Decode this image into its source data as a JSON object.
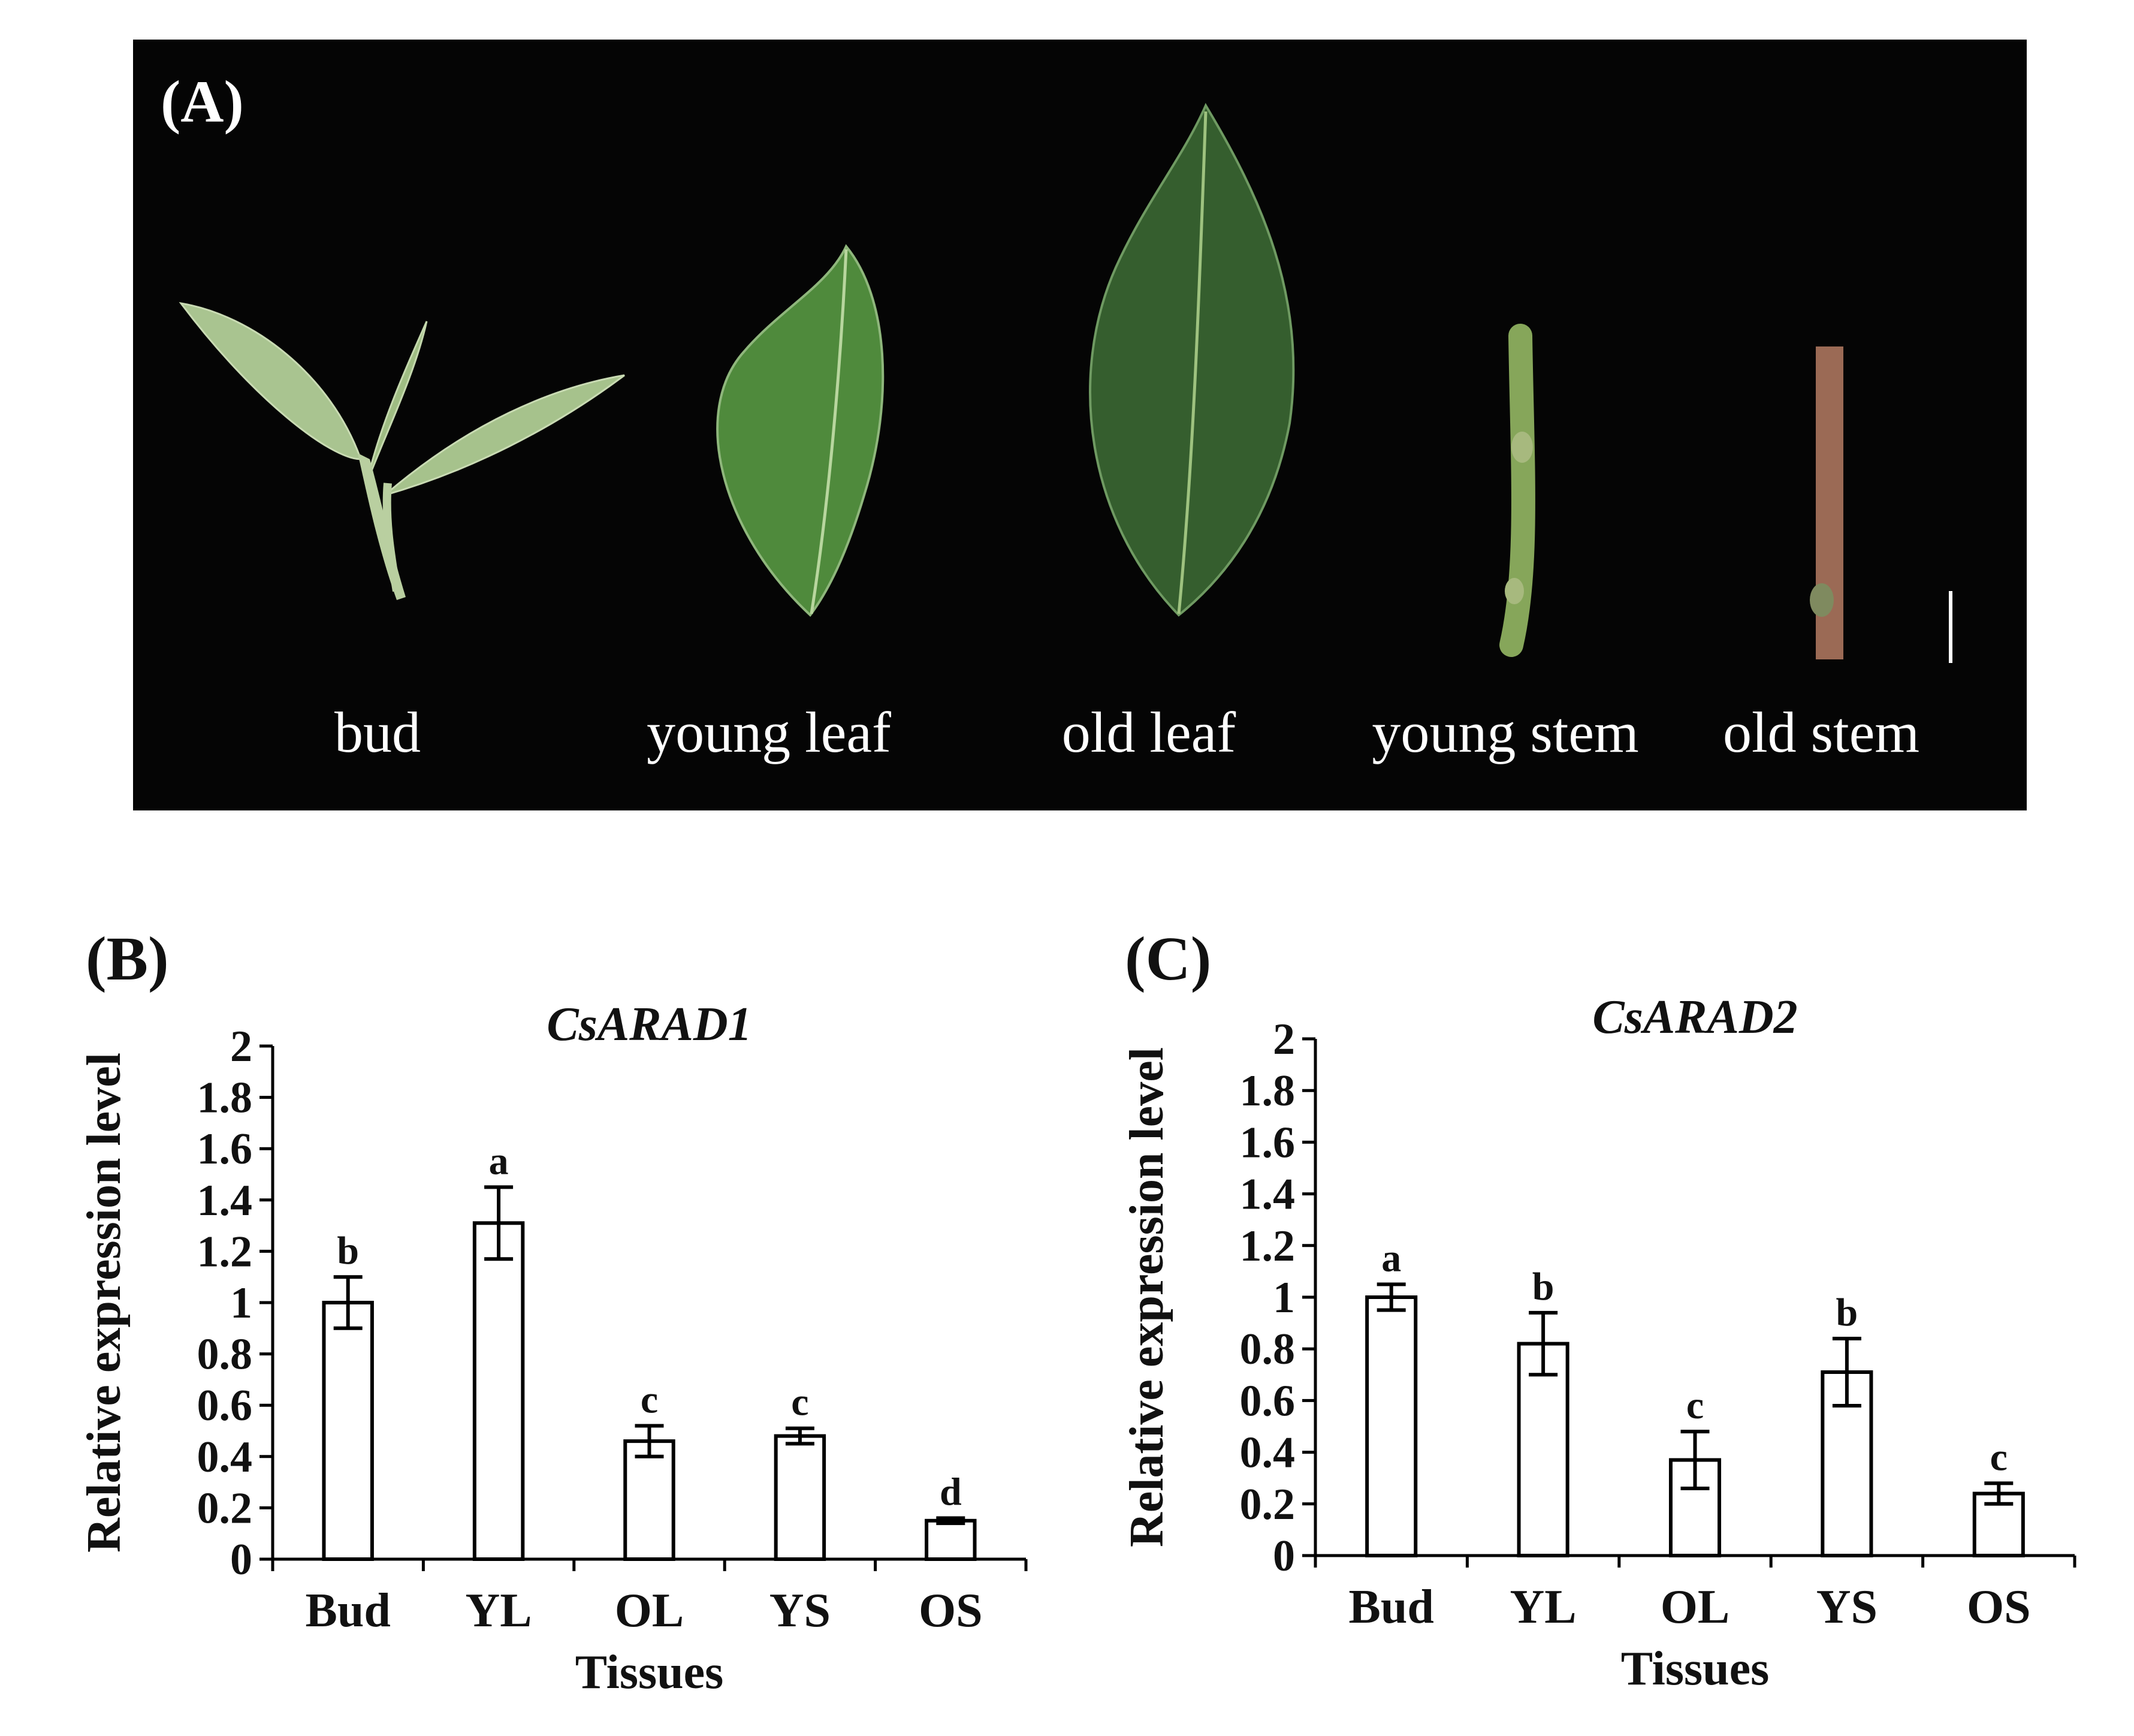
{
  "panel_a": {
    "letter": "(A)",
    "tissues": [
      "bud",
      "young leaf",
      "old leaf",
      "young stem",
      "old stem"
    ]
  },
  "panel_b": {
    "letter": "(B)"
  },
  "panel_c": {
    "letter": "(C)"
  },
  "colors": {
    "photo_background": "#050505",
    "bar_fill": "#ffffff",
    "bar_stroke": "#000000",
    "label_white": "#ffffff"
  },
  "chart_data": [
    {
      "type": "bar",
      "title": "CsARAD1",
      "xlabel": "Tissues",
      "ylabel": "Relative expression level",
      "categories": [
        "Bud",
        "YL",
        "OL",
        "YS",
        "OS"
      ],
      "values": [
        1.0,
        1.31,
        0.46,
        0.48,
        0.15
      ],
      "errors": [
        0.1,
        0.14,
        0.06,
        0.03,
        0.01
      ],
      "significance": [
        "b",
        "a",
        "c",
        "c",
        "d"
      ],
      "ylim": [
        0,
        2
      ],
      "yticks": [
        "0",
        "0.2",
        "0.4",
        "0.6",
        "0.8",
        "1",
        "1.2",
        "1.4",
        "1.6",
        "1.8",
        "2"
      ],
      "grid": false
    },
    {
      "type": "bar",
      "title": "CsARAD2",
      "xlabel": "Tissues",
      "ylabel": "Relative expression level",
      "categories": [
        "Bud",
        "YL",
        "OL",
        "YS",
        "OS"
      ],
      "values": [
        1.0,
        0.82,
        0.37,
        0.71,
        0.24
      ],
      "errors": [
        0.05,
        0.12,
        0.11,
        0.13,
        0.04
      ],
      "significance": [
        "a",
        "b",
        "c",
        "b",
        "c"
      ],
      "ylim": [
        0,
        2
      ],
      "yticks": [
        "0",
        "0.2",
        "0.4",
        "0.6",
        "0.8",
        "1",
        "1.2",
        "1.4",
        "1.6",
        "1.8",
        "2"
      ],
      "grid": false
    }
  ]
}
